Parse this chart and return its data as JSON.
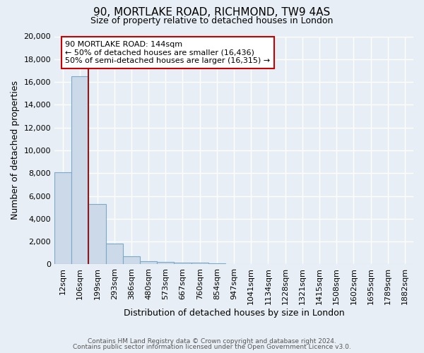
{
  "title": "90, MORTLAKE ROAD, RICHMOND, TW9 4AS",
  "subtitle": "Size of property relative to detached houses in London",
  "xlabel": "Distribution of detached houses by size in London",
  "ylabel": "Number of detached properties",
  "bar_labels": [
    "12sqm",
    "106sqm",
    "199sqm",
    "293sqm",
    "386sqm",
    "480sqm",
    "573sqm",
    "667sqm",
    "760sqm",
    "854sqm",
    "947sqm",
    "1041sqm",
    "1134sqm",
    "1228sqm",
    "1321sqm",
    "1415sqm",
    "1508sqm",
    "1602sqm",
    "1695sqm",
    "1789sqm",
    "1882sqm"
  ],
  "bar_values": [
    8100,
    16500,
    5300,
    1800,
    700,
    300,
    200,
    175,
    150,
    100,
    0,
    0,
    0,
    0,
    0,
    0,
    0,
    0,
    0,
    0,
    0
  ],
  "bar_color": "#ccd9e8",
  "bar_edgecolor": "#7aaac8",
  "background_color": "#e8eef5",
  "grid_color": "#d0dce8",
  "vline_color": "#8b1a1a",
  "ylim": [
    0,
    20000
  ],
  "yticks": [
    0,
    2000,
    4000,
    6000,
    8000,
    10000,
    12000,
    14000,
    16000,
    18000,
    20000
  ],
  "annotation_title": "90 MORTLAKE ROAD: 144sqm",
  "annotation_line1": "← 50% of detached houses are smaller (16,436)",
  "annotation_line2": "50% of semi-detached houses are larger (16,315) →",
  "annotation_box_color": "#ffffff",
  "annotation_border_color": "#cc0000",
  "footer1": "Contains HM Land Registry data © Crown copyright and database right 2024.",
  "footer2": "Contains public sector information licensed under the Open Government Licence v3.0."
}
